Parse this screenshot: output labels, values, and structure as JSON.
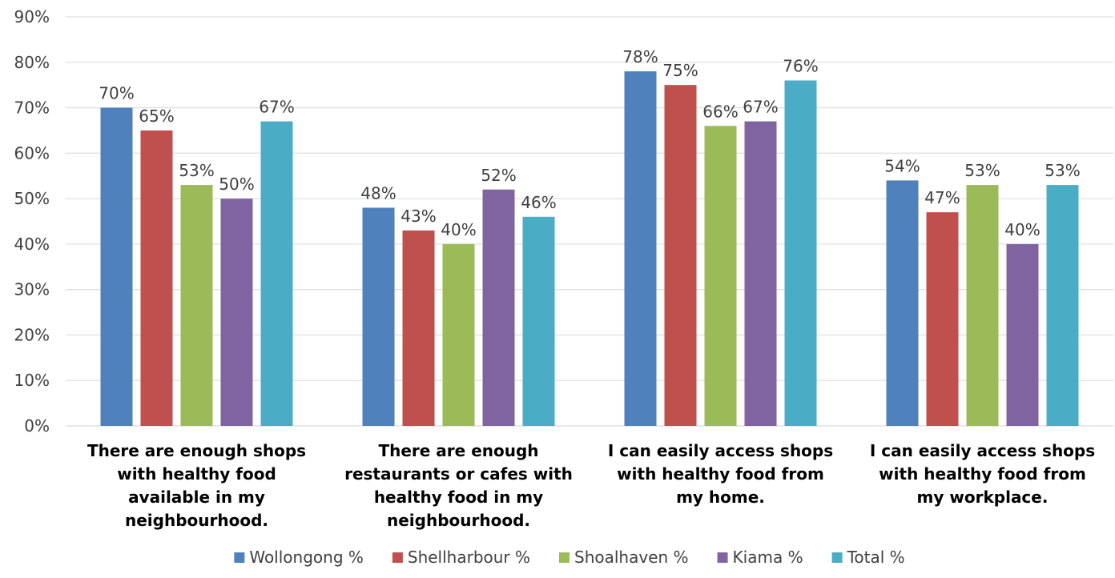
{
  "chart_data": {
    "type": "bar",
    "title": "",
    "xlabel": "",
    "ylabel": "",
    "ylim": [
      0,
      90
    ],
    "y_ticks": [
      "0%",
      "10%",
      "20%",
      "30%",
      "40%",
      "50%",
      "60%",
      "70%",
      "80%",
      "90%"
    ],
    "grid": true,
    "legend_position": "bottom",
    "categories": [
      [
        "There are enough shops",
        "with healthy food",
        "available in my",
        "neighbourhood."
      ],
      [
        "There are enough",
        "restaurants or cafes with",
        "healthy food in my",
        "neighbourhood."
      ],
      [
        "I can easily access shops",
        "with healthy food from",
        "my home."
      ],
      [
        "I can easily access shops",
        "with healthy food from",
        "my workplace."
      ]
    ],
    "series": [
      {
        "name": "Wollongong %",
        "color": "#4F81BD",
        "values": [
          70,
          48,
          78,
          54
        ],
        "labels": [
          "70%",
          "48%",
          "78%",
          "54%"
        ]
      },
      {
        "name": "Shellharbour %",
        "color": "#C0504D",
        "values": [
          65,
          43,
          75,
          47
        ],
        "labels": [
          "65%",
          "43%",
          "75%",
          "47%"
        ]
      },
      {
        "name": "Shoalhaven %",
        "color": "#9BBB59",
        "values": [
          53,
          40,
          66,
          53
        ],
        "labels": [
          "53%",
          "40%",
          "66%",
          "53%"
        ]
      },
      {
        "name": "Kiama %",
        "color": "#8064A2",
        "values": [
          50,
          52,
          67,
          40
        ],
        "labels": [
          "50%",
          "52%",
          "67%",
          "40%"
        ]
      },
      {
        "name": "Total %",
        "color": "#4BACC6",
        "values": [
          67,
          46,
          76,
          53
        ],
        "labels": [
          "67%",
          "46%",
          "76%",
          "53%"
        ]
      }
    ]
  }
}
